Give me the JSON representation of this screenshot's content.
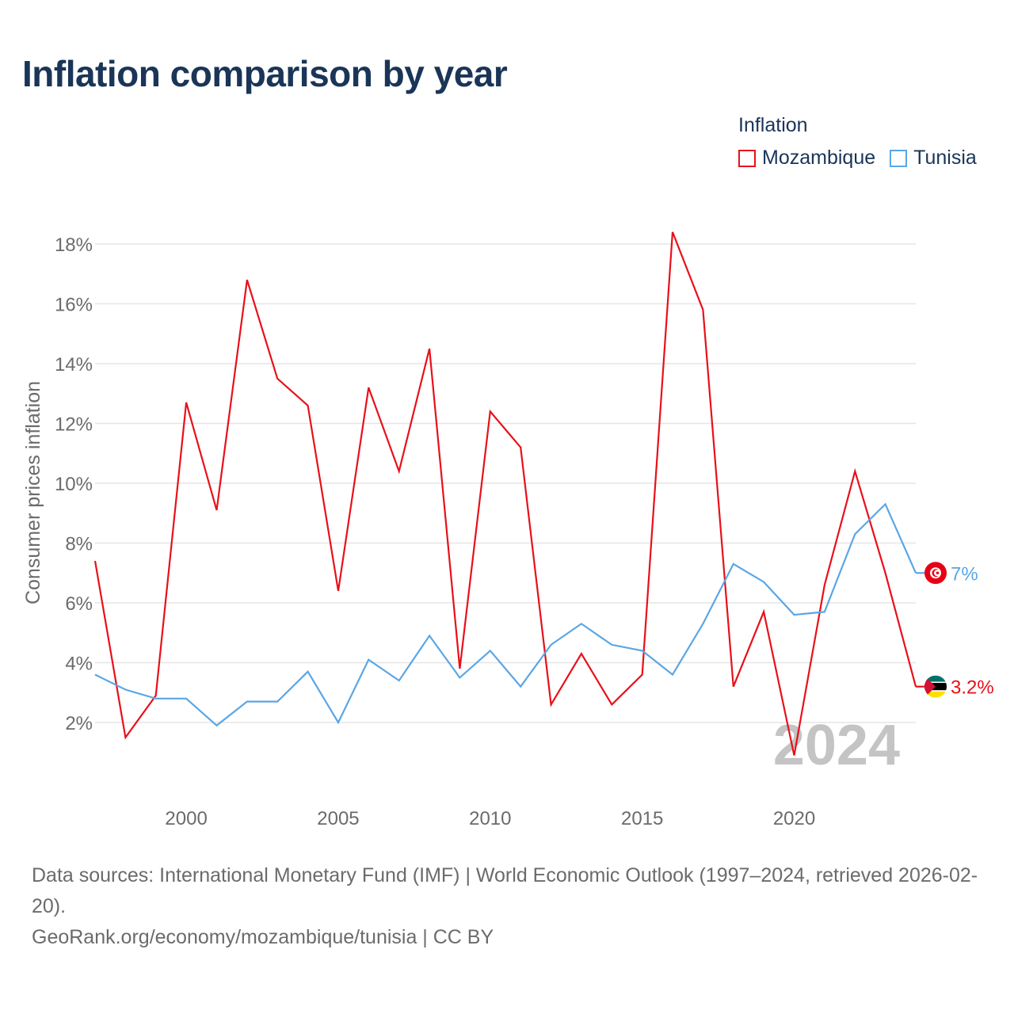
{
  "title": "Inflation comparison by year",
  "legend": {
    "title": "Inflation",
    "items": [
      {
        "name": "Mozambique",
        "color": "#e8101a"
      },
      {
        "name": "Tunisia",
        "color": "#5ba6e5"
      }
    ]
  },
  "footer": {
    "sources": "Data sources: International Monetary Fund (IMF) | World Economic Outlook (1997–2024, retrieved 2026-02-20).",
    "credit": "GeoRank.org/economy/mozambique/tunisia | CC BY"
  },
  "chart_data": {
    "type": "line",
    "title": "Inflation comparison by year",
    "ylabel": "Consumer prices inflation",
    "xlabel": "",
    "xlim": [
      1997,
      2024
    ],
    "ylim": [
      0,
      19
    ],
    "yticks": [
      2,
      4,
      6,
      8,
      10,
      12,
      14,
      16,
      18
    ],
    "ytick_labels": [
      "2%",
      "4%",
      "6%",
      "8%",
      "10%",
      "12%",
      "14%",
      "16%",
      "18%"
    ],
    "xticks": [
      2000,
      2005,
      2010,
      2015,
      2020
    ],
    "xtick_labels": [
      "2000",
      "2005",
      "2010",
      "2015",
      "2020"
    ],
    "year_watermark": "2024",
    "x": [
      1997,
      1998,
      1999,
      2000,
      2001,
      2002,
      2003,
      2004,
      2005,
      2006,
      2007,
      2008,
      2009,
      2010,
      2011,
      2012,
      2013,
      2014,
      2015,
      2016,
      2017,
      2018,
      2019,
      2020,
      2021,
      2022,
      2023,
      2024
    ],
    "series": [
      {
        "name": "Mozambique",
        "color": "#e8101a",
        "end_label": "3.2%",
        "flag": "mozambique-flag",
        "values": [
          7.4,
          1.5,
          2.9,
          12.7,
          9.1,
          16.8,
          13.5,
          12.6,
          6.4,
          13.2,
          10.4,
          14.5,
          3.8,
          12.4,
          11.2,
          2.6,
          4.3,
          2.6,
          3.6,
          18.4,
          15.8,
          3.2,
          5.7,
          0.9,
          6.6,
          10.4,
          7.0,
          3.2
        ]
      },
      {
        "name": "Tunisia",
        "color": "#5ba6e5",
        "end_label": "7%",
        "flag": "tunisia-flag",
        "values": [
          3.6,
          3.1,
          2.8,
          2.8,
          1.9,
          2.7,
          2.7,
          3.7,
          2.0,
          4.1,
          3.4,
          4.9,
          3.5,
          4.4,
          3.2,
          4.6,
          5.3,
          4.6,
          4.4,
          3.6,
          5.3,
          7.3,
          6.7,
          5.6,
          5.7,
          8.3,
          9.3,
          7.0
        ]
      }
    ]
  }
}
